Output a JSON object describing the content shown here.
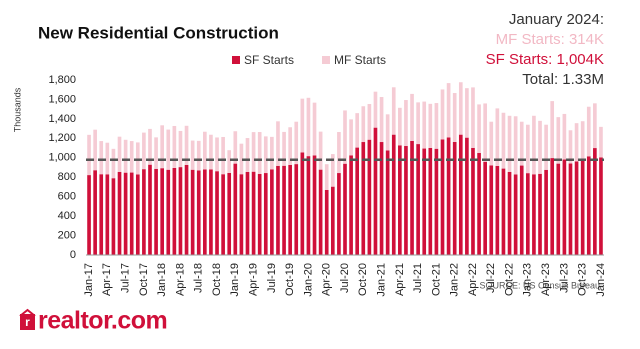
{
  "chart_data": {
    "type": "stacked-bar",
    "title": "New Residential Construction",
    "ylabel": "Thousands",
    "annotations": [
      {
        "text": "January 2024:",
        "color": "#333333"
      },
      {
        "text": "MF Starts: 314K",
        "color": "#f2b8c4"
      },
      {
        "text": "SF Starts:  1,004K",
        "color": "#d0103a"
      },
      {
        "text": "Total:  1.33M",
        "color": "#333333"
      }
    ],
    "source": "SOURCE: US Census Bureau",
    "logo": "realtor.com",
    "categories": [
      "Jan-17",
      null,
      null,
      "Apr-17",
      null,
      null,
      "Jul-17",
      null,
      null,
      "Oct-17",
      null,
      null,
      "Jan-18",
      null,
      null,
      "Apr-18",
      null,
      null,
      "Jul-18",
      null,
      null,
      "Oct-18",
      null,
      null,
      "Jan-19",
      null,
      null,
      "Apr-19",
      null,
      null,
      "Jul-19",
      null,
      null,
      "Oct-19",
      null,
      null,
      "Jan-20",
      null,
      null,
      "Apr-20",
      null,
      null,
      "Jul-20",
      null,
      null,
      "Oct-20",
      null,
      null,
      "Jan-21",
      null,
      null,
      "Apr-21",
      null,
      null,
      "Jul-21",
      null,
      null,
      "Oct-21",
      null,
      null,
      "Jan-22",
      null,
      null,
      "Apr-22",
      null,
      null,
      "Jul-22",
      null,
      null,
      "Oct-22",
      null,
      null,
      "Jan-23",
      null,
      null,
      "Apr-23",
      null,
      null,
      "Jul-23",
      null,
      null,
      "Oct-23",
      null,
      null,
      "Jan-24"
    ],
    "series": [
      {
        "name": "SF Starts",
        "color": "#d0103a",
        "values": [
          822,
          872,
          831,
          830,
          790,
          855,
          847,
          848,
          829,
          883,
          929,
          886,
          893,
          877,
          895,
          904,
          927,
          877,
          870,
          880,
          880,
          862,
          831,
          844,
          940,
          831,
          854,
          857,
          834,
          843,
          881,
          917,
          918,
          926,
          935,
          1055,
          1017,
          1024,
          878,
          669,
          703,
          843,
          939,
          1025,
          1105,
          1162,
          1186,
          1310,
          1162,
          1075,
          1238,
          1128,
          1121,
          1173,
          1141,
          1095,
          1101,
          1093,
          1189,
          1209,
          1163,
          1238,
          1207,
          1102,
          1049,
          959,
          922,
          916,
          889,
          855,
          828,
          920,
          842,
          830,
          835,
          876,
          997,
          940,
          982,
          941,
          963,
          970,
          1015,
          1100,
          1004
        ]
      },
      {
        "name": "MF Starts",
        "color": "#f5cbd4",
        "values": [
          414,
          417,
          341,
          325,
          302,
          362,
          338,
          324,
          329,
          376,
          368,
          324,
          441,
          413,
          432,
          372,
          402,
          300,
          304,
          388,
          357,
          347,
          383,
          234,
          333,
          314,
          349,
          407,
          431,
          377,
          334,
          458,
          348,
          388,
          436,
          553,
          600,
          543,
          391,
          265,
          335,
          422,
          548,
          370,
          354,
          368,
          367,
          370,
          463,
          372,
          487,
          386,
          473,
          484,
          429,
          483,
          454,
          470,
          514,
          559,
          503,
          539,
          509,
          622,
          500,
          600,
          449,
          592,
          574,
          577,
          599,
          451,
          498,
          602,
          545,
          464,
          586,
          478,
          469,
          342,
          393,
          406,
          510,
          460,
          314
        ]
      }
    ],
    "reference_line": 980,
    "ylim": [
      0,
      1800
    ],
    "yticks": [
      0,
      200,
      400,
      600,
      800,
      {
        "value": 1000,
        "label": "1,000"
      },
      {
        "value": 1200,
        "label": "1,200"
      },
      {
        "value": 1400,
        "label": "1,400"
      },
      {
        "value": 1600,
        "label": "1,600"
      },
      {
        "value": 1800,
        "label": "1,800"
      }
    ]
  }
}
